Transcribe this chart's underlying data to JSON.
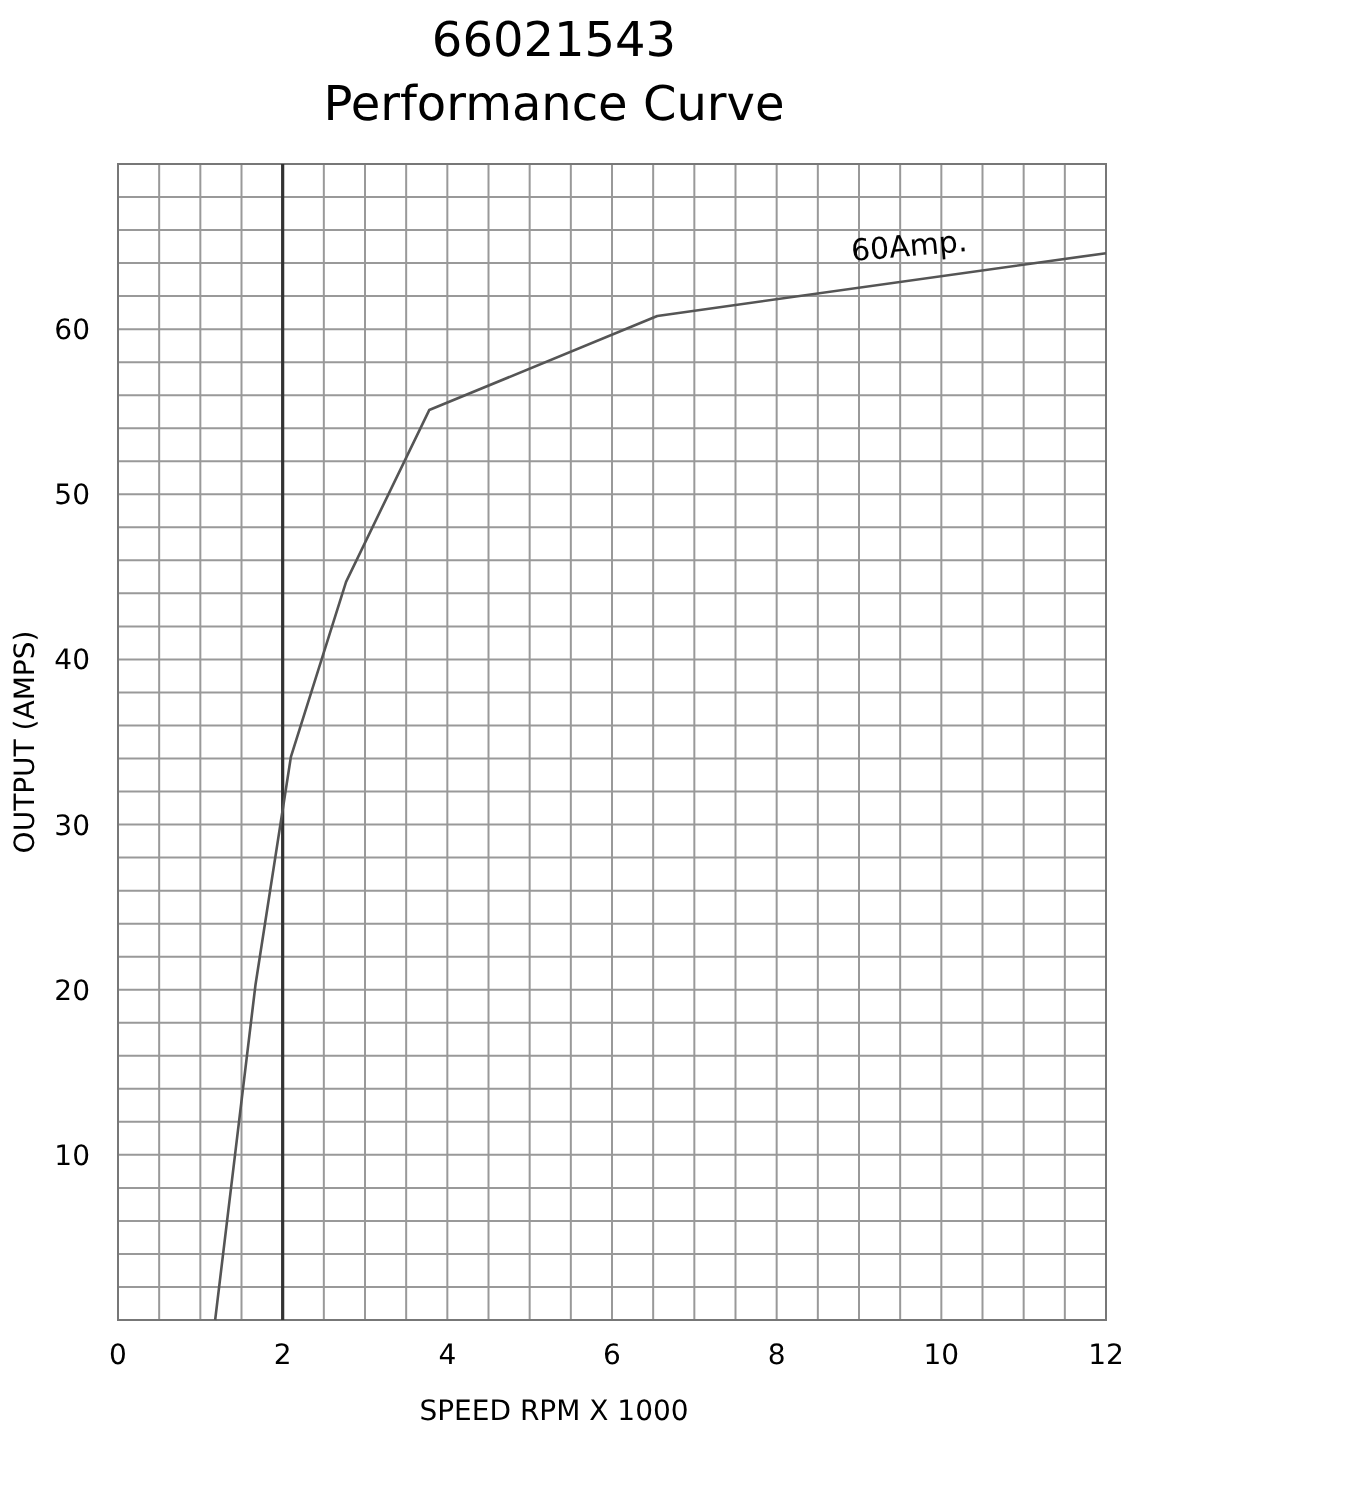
{
  "chart_data": {
    "type": "line",
    "title": "66021543",
    "subtitle": "Performance Curve",
    "xlabel": "SPEED RPM X 1000",
    "ylabel": "OUTPUT (AMPS)",
    "x": [
      1.18,
      1.67,
      2.1,
      2.77,
      3.78,
      6.55,
      12
    ],
    "series": [
      {
        "color": "#555555",
        "values": [
          0,
          20.3,
          34.1,
          44.7,
          55.1,
          60.8,
          64.6
        ]
      }
    ],
    "xlim": [
      0,
      12
    ],
    "xticks": [
      0,
      2,
      4,
      6,
      8,
      10,
      12
    ],
    "ylim": [
      0,
      70
    ],
    "yticks": [
      10,
      20,
      30,
      40,
      50,
      60
    ],
    "grid": true,
    "marker": "none",
    "line_style": "solid",
    "ref_lines": [
      {
        "axis": "x",
        "value": 2,
        "color": "#333333"
      }
    ],
    "annotations": [
      "60Amp."
    ]
  }
}
